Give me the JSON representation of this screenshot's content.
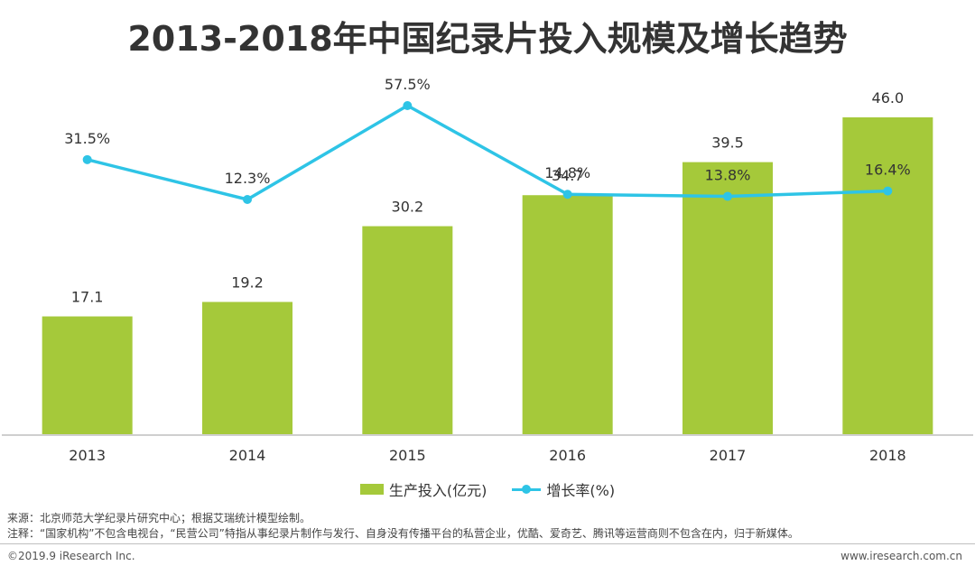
{
  "chart_data": {
    "type": "bar",
    "title": "2013-2018年中国纪录片投入规模及增长趋势",
    "categories": [
      "2013",
      "2014",
      "2015",
      "2016",
      "2017",
      "2018"
    ],
    "series": [
      {
        "name": "生产投入(亿元)",
        "type": "bar",
        "values": [
          17.1,
          19.2,
          30.2,
          34.7,
          39.5,
          46.0
        ],
        "labels": [
          "17.1",
          "19.2",
          "30.2",
          "34.7",
          "39.5",
          "46.0"
        ]
      },
      {
        "name": "增长率(%)",
        "type": "line",
        "values": [
          31.5,
          12.3,
          57.5,
          14.8,
          13.8,
          16.4
        ],
        "labels": [
          "31.5%",
          "12.3%",
          "57.5%",
          "14.8%",
          "13.8%",
          "16.4%"
        ]
      }
    ],
    "bar_ylim": [
      0,
      100
    ],
    "line_ylim": [
      0,
      70
    ],
    "legend_position": "bottom-center",
    "grid": false,
    "colors": {
      "bar": "#a5c93a",
      "line": "#2ec4e6"
    }
  },
  "notes": {
    "source": "来源：北京师范大学纪录片研究中心；根据艾瑞统计模型绘制。",
    "note": "注释：“国家机构”不包含电视台，“民营公司”特指从事纪录片制作与发行、自身没有传播平台的私营企业，优酷、爱奇艺、腾讯等运营商则不包含在内，归于新媒体。"
  },
  "footer": {
    "copyright": "©2019.9 iResearch Inc.",
    "website": "www.iresearch.com.cn"
  }
}
